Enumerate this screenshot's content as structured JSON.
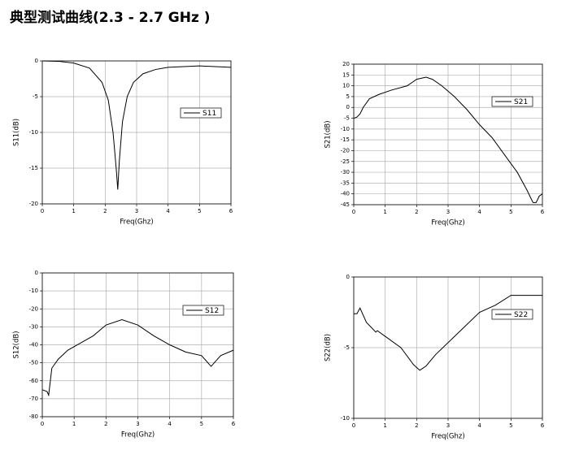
{
  "title": "典型测试曲线(2.3 - 2.7 GHz )",
  "chart_data": [
    {
      "type": "line",
      "xlabel": "Freq(Ghz)",
      "ylabel": "S11(dB)",
      "x": [
        0,
        0.5,
        1,
        1.5,
        1.9,
        2.1,
        2.25,
        2.35,
        2.4,
        2.45,
        2.55,
        2.7,
        2.9,
        3.2,
        3.6,
        4,
        4.5,
        5,
        5.5,
        6
      ],
      "series": [
        {
          "name": "S11",
          "color": "#000000",
          "values": [
            0,
            -0.05,
            -0.3,
            -1,
            -3,
            -5.5,
            -10,
            -15,
            -18,
            -14,
            -8.5,
            -5,
            -3,
            -1.8,
            -1.2,
            -0.9,
            -0.8,
            -0.7,
            -0.8,
            -0.9
          ]
        }
      ],
      "xlim": [
        0,
        6
      ],
      "ylim": [
        -20,
        0
      ],
      "xticks": [
        0,
        1,
        2,
        3,
        4,
        5,
        6
      ],
      "yticks": [
        0,
        -5,
        -10,
        -15,
        -20
      ],
      "grid": true,
      "legend": "center right"
    },
    {
      "type": "line",
      "xlabel": "Freq(Ghz)",
      "ylabel": "S21(dB)",
      "x": [
        0,
        0.1,
        0.2,
        0.3,
        0.5,
        0.8,
        1.2,
        1.7,
        2,
        2.3,
        2.5,
        2.8,
        3.2,
        3.6,
        4,
        4.4,
        4.8,
        5.2,
        5.5,
        5.7,
        5.8,
        5.9,
        6
      ],
      "series": [
        {
          "name": "S21",
          "color": "#000000",
          "values": [
            -5,
            -4.5,
            -3,
            0,
            4,
            6,
            8,
            10,
            13,
            14,
            13,
            10,
            5,
            -1,
            -8,
            -14,
            -22,
            -30,
            -38,
            -44,
            -44,
            -41,
            -40
          ]
        }
      ],
      "xlim": [
        0,
        6
      ],
      "ylim": [
        -45,
        20
      ],
      "xticks": [
        0,
        1,
        2,
        3,
        4,
        5,
        6
      ],
      "yticks": [
        20,
        15,
        10,
        5,
        0,
        -5,
        -10,
        -15,
        -20,
        -25,
        -30,
        -35,
        -40,
        -45
      ],
      "grid": true,
      "legend": "upper right"
    },
    {
      "type": "line",
      "xlabel": "Freq(Ghz)",
      "ylabel": "S12(dB)",
      "x": [
        0,
        0.15,
        0.2,
        0.3,
        0.5,
        0.8,
        1.2,
        1.6,
        2,
        2.5,
        3,
        3.5,
        4,
        4.5,
        5,
        5.3,
        5.6,
        6
      ],
      "series": [
        {
          "name": "S12",
          "color": "#000000",
          "values": [
            -65,
            -66,
            -68,
            -53,
            -48,
            -43,
            -39,
            -35,
            -29,
            -26,
            -29,
            -35,
            -40,
            -44,
            -46,
            -52,
            -46,
            -43
          ]
        }
      ],
      "xlim": [
        0,
        6
      ],
      "ylim": [
        -80,
        0
      ],
      "xticks": [
        0,
        1,
        2,
        3,
        4,
        5,
        6
      ],
      "yticks": [
        0,
        -10,
        -20,
        -30,
        -40,
        -50,
        -60,
        -70,
        -80
      ],
      "grid": true,
      "legend": "upper right"
    },
    {
      "type": "line",
      "xlabel": "Freq(Ghz)",
      "ylabel": "S22(dB)",
      "x": [
        0,
        0.1,
        0.2,
        0.4,
        0.7,
        0.75,
        1,
        1.5,
        1.9,
        2.1,
        2.3,
        2.6,
        3.3,
        4,
        4.5,
        5,
        5.5,
        6
      ],
      "series": [
        {
          "name": "S22",
          "color": "#000000",
          "values": [
            -2.6,
            -2.6,
            -2.2,
            -3.2,
            -3.9,
            -3.8,
            -4.2,
            -5,
            -6.2,
            -6.6,
            -6.3,
            -5.5,
            -4,
            -2.5,
            -2,
            -1.3,
            -1.3,
            -1.3
          ]
        }
      ],
      "xlim": [
        0,
        6
      ],
      "ylim": [
        -10,
        0
      ],
      "xticks": [
        0,
        1,
        2,
        3,
        4,
        5,
        6
      ],
      "yticks": [
        0,
        -5,
        -10
      ],
      "grid": true,
      "legend": "upper right"
    }
  ]
}
